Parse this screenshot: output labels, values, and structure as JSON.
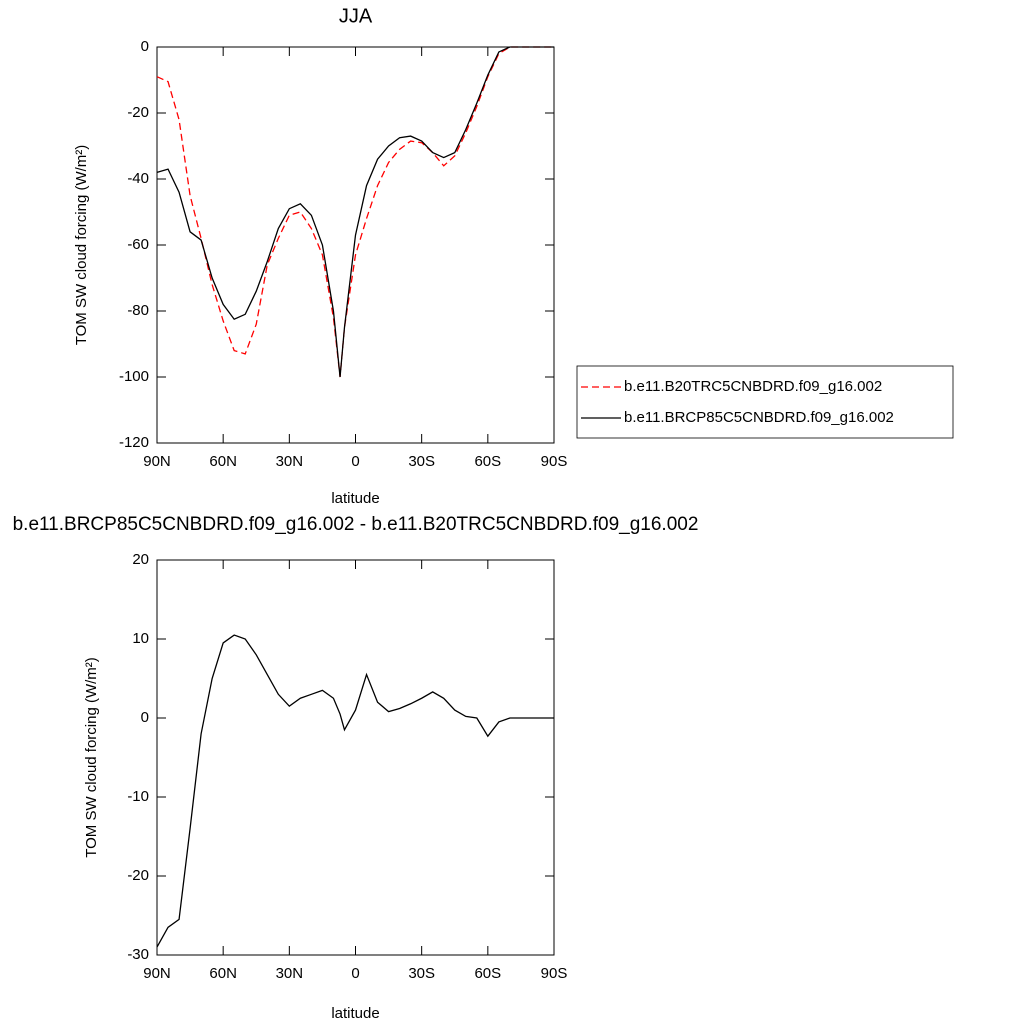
{
  "chart_data": [
    {
      "type": "line",
      "title": "JJA",
      "xlabel": "latitude",
      "ylabel": "TOM SW cloud forcing (W/m²)",
      "x": [
        90,
        85,
        80,
        75,
        70,
        65,
        60,
        55,
        50,
        45,
        40,
        35,
        30,
        25,
        20,
        15,
        10,
        7,
        5,
        0,
        -5,
        -10,
        -15,
        -20,
        -25,
        -30,
        -35,
        -40,
        -45,
        -50,
        -55,
        -60,
        -65,
        -70,
        -75,
        -80,
        -85,
        -90
      ],
      "series": [
        {
          "name": "b.e11.B20TRC5CNBDRD.f09_g16.002",
          "color": "#ff0000",
          "linestyle": "dashed",
          "values": [
            -9,
            -10.5,
            -22,
            -45,
            -58,
            -72,
            -83,
            -92,
            -93,
            -84,
            -66,
            -58,
            -51,
            -50,
            -55,
            -63,
            -82,
            -100,
            -85,
            -63,
            -52,
            -42,
            -35,
            -31,
            -28.5,
            -29,
            -32,
            -36,
            -33,
            -26,
            -18,
            -9,
            -2,
            0,
            0,
            0,
            0,
            0
          ]
        },
        {
          "name": "b.e11.BRCP85C5CNBDRD.f09_g16.002",
          "color": "#000000",
          "linestyle": "solid",
          "values": [
            -38,
            -37,
            -44,
            -56,
            -58.5,
            -70,
            -78,
            -82.5,
            -81,
            -74,
            -65,
            -55,
            -49,
            -47.5,
            -51,
            -60,
            -80,
            -100,
            -85,
            -57,
            -42,
            -34,
            -30,
            -27.5,
            -27,
            -28.5,
            -32,
            -33.5,
            -32,
            -25,
            -17,
            -8.5,
            -1.5,
            0,
            0,
            0,
            0,
            0
          ]
        }
      ],
      "xlim": [
        90,
        -90
      ],
      "xticks": [
        {
          "value": 90,
          "label": "90N"
        },
        {
          "value": 60,
          "label": "60N"
        },
        {
          "value": 30,
          "label": "30N"
        },
        0,
        {
          "value": -30,
          "label": "30S"
        },
        {
          "value": -60,
          "label": "60S"
        },
        {
          "value": -90,
          "label": "90S"
        }
      ],
      "ylim": [
        -120,
        0
      ],
      "yticks": [
        0,
        -20,
        -40,
        -60,
        -80,
        -100,
        -120
      ],
      "legend": "outside right"
    },
    {
      "type": "line",
      "title": "b.e11.BRCP85C5CNBDRD.f09_g16.002 - b.e11.B20TRC5CNBDRD.f09_g16.002",
      "xlabel": "latitude",
      "ylabel": "TOM SW cloud forcing (W/m²)",
      "x": [
        90,
        85,
        80,
        75,
        70,
        65,
        60,
        55,
        50,
        45,
        40,
        35,
        30,
        25,
        20,
        15,
        10,
        7,
        5,
        0,
        -5,
        -10,
        -15,
        -20,
        -25,
        -30,
        -35,
        -40,
        -45,
        -50,
        -55,
        -60,
        -65,
        -70,
        -75,
        -80,
        -85,
        -90
      ],
      "series": [
        {
          "color": "#000000",
          "linestyle": "solid",
          "values": [
            -29,
            -26.5,
            -25.5,
            -14,
            -2,
            5,
            9.5,
            10.5,
            10,
            8,
            5.5,
            3,
            1.5,
            2.5,
            3,
            3.5,
            2.5,
            0.5,
            -1.5,
            1,
            5.5,
            2,
            0.8,
            1.2,
            1.8,
            2.5,
            3.3,
            2.5,
            1,
            0.2,
            0,
            -2.3,
            -0.5,
            0,
            0,
            0,
            0,
            0
          ]
        }
      ],
      "xlim": [
        90,
        -90
      ],
      "xticks": [
        {
          "value": 90,
          "label": "90N"
        },
        {
          "value": 60,
          "label": "60N"
        },
        {
          "value": 30,
          "label": "30N"
        },
        0,
        {
          "value": -30,
          "label": "30S"
        },
        {
          "value": -60,
          "label": "60S"
        },
        {
          "value": -90,
          "label": "90S"
        }
      ],
      "ylim": [
        -30,
        20
      ],
      "yticks": [
        20,
        10,
        0,
        -10,
        -20,
        -30
      ]
    }
  ]
}
